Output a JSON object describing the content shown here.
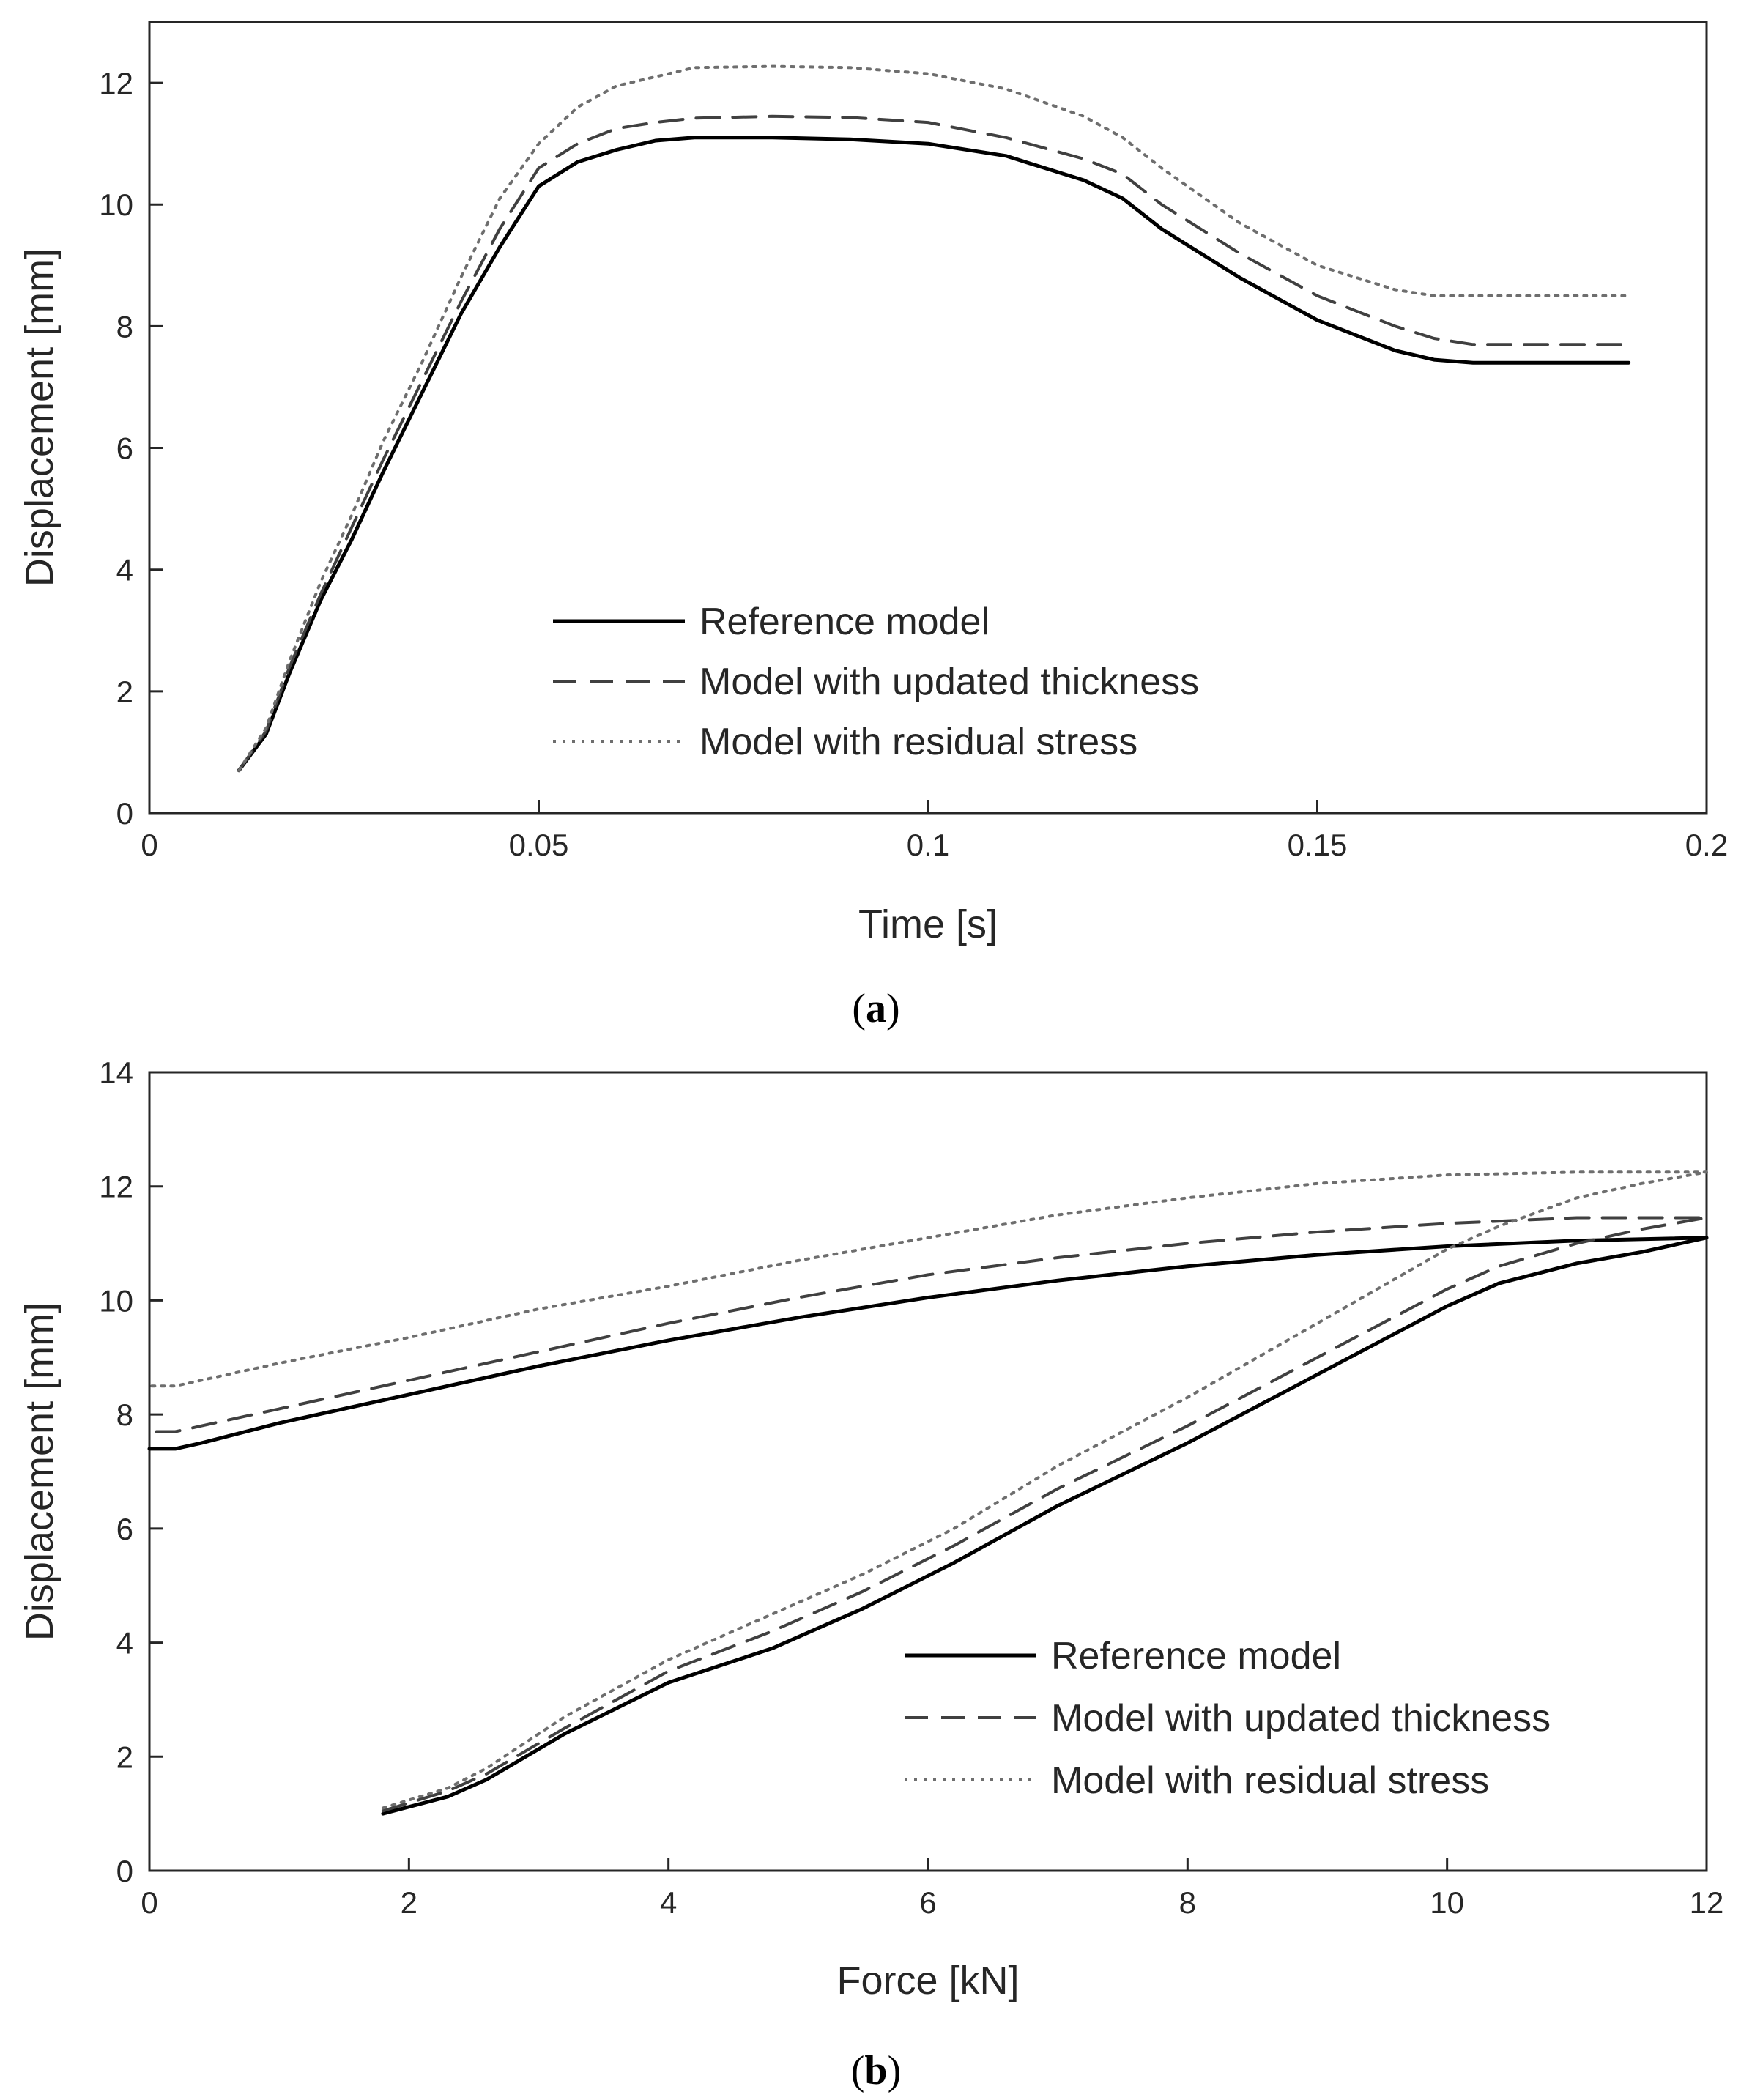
{
  "chart_data": [
    {
      "type": "line",
      "panel_label": "a",
      "xlabel": "Time [s]",
      "ylabel": "Displacement [mm]",
      "xlim": [
        0,
        0.2
      ],
      "ylim": [
        0,
        13
      ],
      "xticks": [
        0,
        0.05,
        0.1,
        0.15,
        0.2
      ],
      "xtick_labels": [
        "0",
        "0.05",
        "0.1",
        "0.15",
        "0.2"
      ],
      "yticks": [
        0,
        2,
        4,
        6,
        8,
        10,
        12
      ],
      "ytick_labels": [
        "0",
        "2",
        "4",
        "6",
        "8",
        "10",
        "12"
      ],
      "grid": false,
      "legend_position": "bottom-center",
      "series": [
        {
          "name": "Reference model",
          "style": "solid",
          "x": [
            0.0115,
            0.015,
            0.018,
            0.022,
            0.026,
            0.03,
            0.035,
            0.04,
            0.045,
            0.05,
            0.055,
            0.06,
            0.065,
            0.07,
            0.08,
            0.09,
            0.1,
            0.11,
            0.12,
            0.125,
            0.13,
            0.14,
            0.15,
            0.16,
            0.165,
            0.17,
            0.175,
            0.18,
            0.19
          ],
          "y": [
            0.7,
            1.3,
            2.3,
            3.5,
            4.5,
            5.6,
            6.9,
            8.2,
            9.3,
            10.3,
            10.7,
            10.9,
            11.05,
            11.1,
            11.1,
            11.07,
            11.0,
            10.8,
            10.4,
            10.1,
            9.6,
            8.8,
            8.1,
            7.6,
            7.45,
            7.4,
            7.4,
            7.4,
            7.4
          ]
        },
        {
          "name": "Model with updated thickness",
          "style": "dashed",
          "x": [
            0.0115,
            0.015,
            0.018,
            0.022,
            0.026,
            0.03,
            0.035,
            0.04,
            0.045,
            0.05,
            0.055,
            0.06,
            0.065,
            0.07,
            0.08,
            0.09,
            0.1,
            0.11,
            0.12,
            0.125,
            0.13,
            0.14,
            0.15,
            0.16,
            0.165,
            0.17,
            0.175,
            0.18,
            0.19
          ],
          "y": [
            0.7,
            1.35,
            2.4,
            3.6,
            4.7,
            5.8,
            7.1,
            8.4,
            9.6,
            10.6,
            11.0,
            11.25,
            11.35,
            11.42,
            11.45,
            11.43,
            11.35,
            11.1,
            10.75,
            10.5,
            10.0,
            9.2,
            8.5,
            8.0,
            7.8,
            7.7,
            7.7,
            7.7,
            7.7
          ]
        },
        {
          "name": "Model with residual stress",
          "style": "dotted",
          "x": [
            0.0115,
            0.015,
            0.018,
            0.022,
            0.026,
            0.03,
            0.035,
            0.04,
            0.045,
            0.05,
            0.055,
            0.06,
            0.065,
            0.07,
            0.08,
            0.09,
            0.1,
            0.11,
            0.12,
            0.125,
            0.13,
            0.14,
            0.15,
            0.16,
            0.165,
            0.17,
            0.175,
            0.18,
            0.19
          ],
          "y": [
            0.7,
            1.4,
            2.5,
            3.8,
            4.9,
            6.1,
            7.4,
            8.8,
            10.1,
            11.0,
            11.6,
            11.95,
            12.1,
            12.25,
            12.27,
            12.25,
            12.15,
            11.9,
            11.45,
            11.1,
            10.6,
            9.7,
            9.0,
            8.6,
            8.5,
            8.5,
            8.5,
            8.5,
            8.5
          ]
        }
      ]
    },
    {
      "type": "line",
      "panel_label": "b",
      "xlabel": "Force [kN]",
      "ylabel": "Displacement [mm]",
      "xlim": [
        0,
        12
      ],
      "ylim": [
        0,
        14
      ],
      "xticks": [
        0,
        2,
        4,
        6,
        8,
        10,
        12
      ],
      "xtick_labels": [
        "0",
        "2",
        "4",
        "6",
        "8",
        "10",
        "12"
      ],
      "yticks": [
        0,
        2,
        4,
        6,
        8,
        10,
        12,
        14
      ],
      "ytick_labels": [
        "0",
        "2",
        "4",
        "6",
        "8",
        "10",
        "12",
        "14"
      ],
      "grid": false,
      "legend_position": "bottom-right",
      "series": [
        {
          "name": "Reference model",
          "style": "solid",
          "x": [
            1.8,
            2.3,
            2.6,
            3.2,
            4.0,
            4.8,
            5.5,
            6.2,
            7.0,
            8.0,
            9.0,
            10.0,
            10.4,
            11.0,
            11.5,
            12.0,
            11.0,
            10.0,
            9.0,
            8.0,
            7.0,
            6.0,
            5.0,
            4.0,
            3.0,
            2.0,
            1.0,
            0.4,
            0.2,
            0.0
          ],
          "y": [
            1.0,
            1.3,
            1.6,
            2.4,
            3.3,
            3.9,
            4.6,
            5.4,
            6.4,
            7.5,
            8.7,
            9.9,
            10.3,
            10.65,
            10.85,
            11.1,
            11.05,
            10.95,
            10.8,
            10.6,
            10.35,
            10.05,
            9.7,
            9.3,
            8.85,
            8.35,
            7.85,
            7.5,
            7.4,
            7.4
          ]
        },
        {
          "name": "Model with updated thickness",
          "style": "dashed",
          "x": [
            1.8,
            2.3,
            2.6,
            3.2,
            4.0,
            4.8,
            5.5,
            6.2,
            7.0,
            8.0,
            9.0,
            10.0,
            10.4,
            11.0,
            11.5,
            12.0,
            11.0,
            10.0,
            9.0,
            8.0,
            7.0,
            6.0,
            5.0,
            4.0,
            3.0,
            2.0,
            1.0,
            0.4,
            0.2,
            0.0
          ],
          "y": [
            1.05,
            1.4,
            1.7,
            2.5,
            3.5,
            4.2,
            4.9,
            5.7,
            6.7,
            7.8,
            9.0,
            10.2,
            10.6,
            11.0,
            11.25,
            11.45,
            11.45,
            11.35,
            11.2,
            11.0,
            10.75,
            10.45,
            10.05,
            9.6,
            9.1,
            8.6,
            8.1,
            7.8,
            7.7,
            7.7
          ]
        },
        {
          "name": "Model with residual stress",
          "style": "dotted",
          "x": [
            1.8,
            2.3,
            2.6,
            3.2,
            4.0,
            4.8,
            5.5,
            6.2,
            7.0,
            8.0,
            9.0,
            10.0,
            10.4,
            11.0,
            11.5,
            12.0,
            11.0,
            10.0,
            9.0,
            8.0,
            7.0,
            6.0,
            5.0,
            4.0,
            3.0,
            2.0,
            1.0,
            0.4,
            0.2,
            0.0
          ],
          "y": [
            1.1,
            1.45,
            1.8,
            2.7,
            3.7,
            4.5,
            5.2,
            6.0,
            7.1,
            8.3,
            9.6,
            10.9,
            11.3,
            11.8,
            12.05,
            12.25,
            12.25,
            12.2,
            12.05,
            11.8,
            11.5,
            11.1,
            10.7,
            10.25,
            9.85,
            9.35,
            8.9,
            8.6,
            8.5,
            8.5
          ]
        }
      ]
    }
  ]
}
